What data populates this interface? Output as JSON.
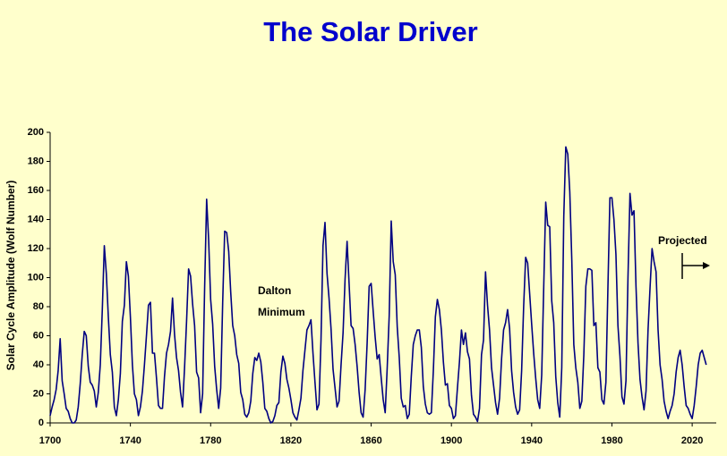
{
  "chart_data": {
    "type": "line",
    "title": "The Solar Driver",
    "ylabel": "Solar Cycle Amplitude (Wolf Number)",
    "annotations": [
      "Dalton",
      "Minimum",
      "Projected"
    ],
    "x": [
      1700,
      1701,
      1702,
      1703,
      1704,
      1705,
      1706,
      1707,
      1708,
      1709,
      1710,
      1711,
      1712,
      1713,
      1714,
      1715,
      1716,
      1717,
      1718,
      1719,
      1720,
      1721,
      1722,
      1723,
      1724,
      1725,
      1726,
      1727,
      1728,
      1729,
      1730,
      1731,
      1732,
      1733,
      1734,
      1735,
      1736,
      1737,
      1738,
      1739,
      1740,
      1741,
      1742,
      1743,
      1744,
      1745,
      1746,
      1747,
      1748,
      1749,
      1750,
      1751,
      1752,
      1753,
      1754,
      1755,
      1756,
      1757,
      1758,
      1759,
      1760,
      1761,
      1762,
      1763,
      1764,
      1765,
      1766,
      1767,
      1768,
      1769,
      1770,
      1771,
      1772,
      1773,
      1774,
      1775,
      1776,
      1777,
      1778,
      1779,
      1780,
      1781,
      1782,
      1783,
      1784,
      1785,
      1786,
      1787,
      1788,
      1789,
      1790,
      1791,
      1792,
      1793,
      1794,
      1795,
      1796,
      1797,
      1798,
      1799,
      1800,
      1801,
      1802,
      1803,
      1804,
      1805,
      1806,
      1807,
      1808,
      1809,
      1810,
      1811,
      1812,
      1813,
      1814,
      1815,
      1816,
      1817,
      1818,
      1819,
      1820,
      1821,
      1822,
      1823,
      1824,
      1825,
      1826,
      1827,
      1828,
      1829,
      1830,
      1831,
      1832,
      1833,
      1834,
      1835,
      1836,
      1837,
      1838,
      1839,
      1840,
      1841,
      1842,
      1843,
      1844,
      1845,
      1846,
      1847,
      1848,
      1849,
      1850,
      1851,
      1852,
      1853,
      1854,
      1855,
      1856,
      1857,
      1858,
      1859,
      1860,
      1861,
      1862,
      1863,
      1864,
      1865,
      1866,
      1867,
      1868,
      1869,
      1870,
      1871,
      1872,
      1873,
      1874,
      1875,
      1876,
      1877,
      1878,
      1879,
      1880,
      1881,
      1882,
      1883,
      1884,
      1885,
      1886,
      1887,
      1888,
      1889,
      1890,
      1891,
      1892,
      1893,
      1894,
      1895,
      1896,
      1897,
      1898,
      1899,
      1900,
      1901,
      1902,
      1903,
      1904,
      1905,
      1906,
      1907,
      1908,
      1909,
      1910,
      1911,
      1912,
      1913,
      1914,
      1915,
      1916,
      1917,
      1918,
      1919,
      1920,
      1921,
      1922,
      1923,
      1924,
      1925,
      1926,
      1927,
      1928,
      1929,
      1930,
      1931,
      1932,
      1933,
      1934,
      1935,
      1936,
      1937,
      1938,
      1939,
      1940,
      1941,
      1942,
      1943,
      1944,
      1945,
      1946,
      1947,
      1948,
      1949,
      1950,
      1951,
      1952,
      1953,
      1954,
      1955,
      1956,
      1957,
      1958,
      1959,
      1960,
      1961,
      1962,
      1963,
      1964,
      1965,
      1966,
      1967,
      1968,
      1969,
      1970,
      1971,
      1972,
      1973,
      1974,
      1975,
      1976,
      1977,
      1978,
      1979,
      1980,
      1981,
      1982,
      1983,
      1984,
      1985,
      1986,
      1987,
      1988,
      1989,
      1990,
      1991,
      1992,
      1993,
      1994,
      1995,
      1996,
      1997,
      1998,
      1999,
      2000,
      2001,
      2002,
      2003,
      2004,
      2005,
      2006,
      2007,
      2008,
      2009,
      2010,
      2011,
      2012,
      2013,
      2014,
      2015,
      2016,
      2017,
      2018,
      2019,
      2020,
      2021,
      2022,
      2023,
      2024,
      2025,
      2026,
      2027
    ],
    "series": [
      {
        "name": "Wolf Number",
        "color": "#000080",
        "values": [
          5,
          11,
          16,
          23,
          36,
          58,
          29,
          20,
          10,
          8,
          3,
          0,
          0,
          2,
          11,
          27,
          47,
          63,
          60,
          39,
          28,
          26,
          22,
          11,
          21,
          40,
          78,
          122,
          103,
          73,
          47,
          35,
          11,
          5,
          16,
          34,
          70,
          81,
          111,
          101,
          73,
          40,
          20,
          16,
          5,
          11,
          22,
          40,
          60,
          81,
          83,
          48,
          48,
          31,
          12,
          10,
          10,
          32,
          48,
          54,
          63,
          86,
          61,
          45,
          36,
          21,
          11,
          38,
          70,
          106,
          101,
          82,
          67,
          35,
          31,
          7,
          20,
          93,
          154,
          126,
          85,
          68,
          39,
          23,
          10,
          24,
          83,
          132,
          131,
          118,
          90,
          67,
          60,
          47,
          41,
          21,
          16,
          6,
          4,
          7,
          15,
          34,
          45,
          43,
          48,
          42,
          28,
          10,
          8,
          3,
          0,
          1,
          5,
          12,
          14,
          35,
          46,
          41,
          30,
          24,
          16,
          7,
          4,
          2,
          9,
          17,
          36,
          50,
          64,
          67,
          71,
          48,
          28,
          9,
          13,
          57,
          122,
          138,
          103,
          86,
          65,
          37,
          24,
          11,
          15,
          40,
          62,
          99,
          125,
          96,
          67,
          65,
          54,
          39,
          21,
          7,
          4,
          23,
          55,
          94,
          96,
          77,
          59,
          44,
          47,
          31,
          16,
          7,
          38,
          74,
          139,
          111,
          102,
          66,
          45,
          17,
          11,
          12,
          3,
          6,
          32,
          54,
          60,
          64,
          64,
          52,
          25,
          13,
          7,
          6,
          7,
          36,
          73,
          85,
          78,
          64,
          42,
          26,
          27,
          12,
          10,
          3,
          5,
          24,
          42,
          64,
          54,
          62,
          49,
          44,
          19,
          6,
          4,
          1,
          10,
          47,
          57,
          104,
          81,
          64,
          38,
          26,
          14,
          6,
          17,
          44,
          64,
          69,
          78,
          65,
          36,
          21,
          11,
          6,
          9,
          36,
          80,
          114,
          110,
          89,
          68,
          48,
          31,
          16,
          10,
          33,
          93,
          152,
          136,
          135,
          84,
          69,
          32,
          14,
          4,
          38,
          142,
          190,
          185,
          159,
          112,
          54,
          38,
          28,
          10,
          15,
          47,
          94,
          106,
          106,
          105,
          67,
          69,
          38,
          35,
          16,
          13,
          28,
          93,
          155,
          155,
          140,
          116,
          67,
          46,
          18,
          13,
          29,
          100,
          158,
          143,
          146,
          94,
          55,
          30,
          18,
          9,
          22,
          64,
          93,
          120,
          111,
          104,
          64,
          40,
          30,
          15,
          8,
          3,
          8,
          12,
          20,
          35,
          45,
          50,
          40,
          25,
          12,
          10,
          6,
          3,
          12,
          25,
          40,
          48,
          50,
          45,
          40
        ]
      }
    ],
    "xlim": [
      1700,
      2032
    ],
    "xticks": [
      1700,
      1740,
      1780,
      1820,
      1860,
      1900,
      1940,
      1980,
      2020
    ],
    "ylim": [
      0,
      200
    ],
    "yticks": [
      0,
      20,
      40,
      60,
      80,
      100,
      120,
      140,
      160,
      180,
      200
    ],
    "grid": false
  }
}
